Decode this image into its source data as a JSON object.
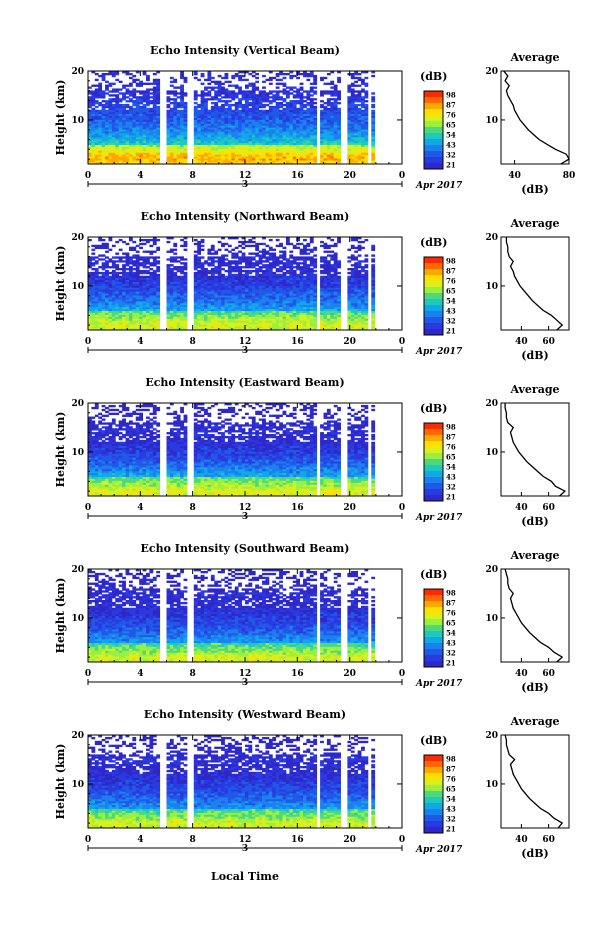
{
  "figure": {
    "x_axis_label": "Local Time",
    "date_label": "Apr 2017",
    "day_label": "3",
    "colorbar_unit": "(dB)",
    "colorbar_ticks": [
      "98",
      "87",
      "76",
      "65",
      "54",
      "43",
      "32",
      "21"
    ],
    "colorbar_colors": [
      "#ff2a00",
      "#ff6a00",
      "#ffa800",
      "#ffe000",
      "#d8f020",
      "#9af040",
      "#4cd880",
      "#1ec8c0",
      "#10a8e8",
      "#1c80f0",
      "#2058e8",
      "#2a3ae0",
      "#2e28c8"
    ],
    "profile_title": "Average",
    "profile_xlabel": "(dB)"
  },
  "chart_data": [
    {
      "type": "heatmap",
      "title": "Echo Intensity (Vertical Beam)",
      "xlabel": "",
      "ylabel": "Height (km)",
      "xlim": [
        0,
        24
      ],
      "ylim": [
        1,
        20
      ],
      "x_ticks": [
        "0",
        "4",
        "8",
        "12",
        "16",
        "20",
        "0"
      ],
      "y_ticks": [
        "10",
        "20"
      ],
      "color_range_db": [
        21,
        98
      ],
      "data_gaps_hours": [
        [
          5.5,
          5.9
        ],
        [
          7.6,
          8.0
        ],
        [
          17.5,
          17.8
        ],
        [
          19.3,
          19.7
        ],
        [
          21.4,
          21.6
        ]
      ],
      "profile": {
        "xlim": [
          30,
          80
        ],
        "x_ticks": [
          "40",
          "80"
        ],
        "y_ticks": [
          "10",
          "20"
        ],
        "height_km": [
          1,
          2,
          3,
          4,
          5,
          6,
          7,
          8,
          9,
          10,
          11,
          12,
          13,
          14,
          15,
          16,
          17,
          18,
          19,
          20
        ],
        "db": [
          74,
          80,
          78,
          70,
          64,
          58,
          54,
          50,
          47,
          44,
          42,
          40,
          39,
          37,
          35,
          34,
          36,
          33,
          35,
          32
        ]
      }
    },
    {
      "type": "heatmap",
      "title": "Echo Intensity (Northward Beam)",
      "xlabel": "",
      "ylabel": "Height (km)",
      "xlim": [
        0,
        24
      ],
      "ylim": [
        1,
        20
      ],
      "x_ticks": [
        "0",
        "4",
        "8",
        "12",
        "16",
        "20",
        "0"
      ],
      "y_ticks": [
        "10",
        "20"
      ],
      "color_range_db": [
        21,
        98
      ],
      "data_gaps_hours": [
        [
          5.5,
          5.9
        ],
        [
          7.6,
          8.0
        ],
        [
          17.5,
          17.8
        ],
        [
          19.3,
          19.7
        ],
        [
          21.4,
          21.6
        ]
      ],
      "profile": {
        "xlim": [
          25,
          75
        ],
        "x_ticks": [
          "40",
          "60"
        ],
        "y_ticks": [
          "10",
          "20"
        ],
        "height_km": [
          1,
          2,
          3,
          4,
          5,
          6,
          7,
          8,
          9,
          10,
          11,
          12,
          13,
          14,
          15,
          16,
          17,
          18,
          19,
          20
        ],
        "db": [
          66,
          70,
          66,
          62,
          56,
          52,
          48,
          45,
          42,
          39,
          37,
          35,
          34,
          32,
          34,
          31,
          30,
          30,
          29,
          29
        ]
      }
    },
    {
      "type": "heatmap",
      "title": "Echo Intensity (Eastward Beam)",
      "xlabel": "",
      "ylabel": "Height (km)",
      "xlim": [
        0,
        24
      ],
      "ylim": [
        1,
        20
      ],
      "x_ticks": [
        "0",
        "4",
        "8",
        "12",
        "16",
        "20",
        "0"
      ],
      "y_ticks": [
        "10",
        "20"
      ],
      "color_range_db": [
        21,
        98
      ],
      "data_gaps_hours": [
        [
          5.5,
          5.9
        ],
        [
          7.6,
          8.0
        ],
        [
          17.5,
          17.8
        ],
        [
          19.3,
          19.7
        ],
        [
          21.4,
          21.6
        ]
      ],
      "profile": {
        "xlim": [
          25,
          75
        ],
        "x_ticks": [
          "40",
          "60"
        ],
        "y_ticks": [
          "10",
          "20"
        ],
        "height_km": [
          1,
          2,
          3,
          4,
          5,
          6,
          7,
          8,
          9,
          10,
          11,
          12,
          13,
          14,
          15,
          16,
          17,
          18,
          19,
          20
        ],
        "db": [
          68,
          72,
          65,
          62,
          56,
          52,
          48,
          44,
          41,
          38,
          36,
          34,
          33,
          32,
          34,
          30,
          29,
          29,
          28,
          28
        ]
      }
    },
    {
      "type": "heatmap",
      "title": "Echo Intensity (Southward Beam)",
      "xlabel": "",
      "ylabel": "Height (km)",
      "xlim": [
        0,
        24
      ],
      "ylim": [
        1,
        20
      ],
      "x_ticks": [
        "0",
        "4",
        "8",
        "12",
        "16",
        "20",
        "0"
      ],
      "y_ticks": [
        "10",
        "20"
      ],
      "color_range_db": [
        21,
        98
      ],
      "data_gaps_hours": [
        [
          5.5,
          5.9
        ],
        [
          7.6,
          8.0
        ],
        [
          17.5,
          17.8
        ],
        [
          19.3,
          19.7
        ],
        [
          21.4,
          21.6
        ]
      ],
      "profile": {
        "xlim": [
          25,
          75
        ],
        "x_ticks": [
          "40",
          "60"
        ],
        "y_ticks": [
          "10",
          "20"
        ],
        "height_km": [
          1,
          2,
          3,
          4,
          5,
          6,
          7,
          8,
          9,
          10,
          11,
          12,
          13,
          14,
          15,
          16,
          17,
          18,
          19,
          20
        ],
        "db": [
          66,
          70,
          64,
          60,
          54,
          50,
          46,
          43,
          40,
          38,
          36,
          34,
          33,
          32,
          34,
          31,
          30,
          30,
          29,
          28
        ]
      }
    },
    {
      "type": "heatmap",
      "title": "Echo Intensity (Westward Beam)",
      "xlabel": "Local Time",
      "ylabel": "Height (km)",
      "xlim": [
        0,
        24
      ],
      "ylim": [
        1,
        20
      ],
      "x_ticks": [
        "0",
        "4",
        "8",
        "12",
        "16",
        "20",
        "0"
      ],
      "y_ticks": [
        "10",
        "20"
      ],
      "color_range_db": [
        21,
        98
      ],
      "data_gaps_hours": [
        [
          5.5,
          5.9
        ],
        [
          7.6,
          8.0
        ],
        [
          17.5,
          17.8
        ],
        [
          19.3,
          19.7
        ],
        [
          21.4,
          21.6
        ]
      ],
      "profile": {
        "xlim": [
          25,
          75
        ],
        "x_ticks": [
          "40",
          "60"
        ],
        "y_ticks": [
          "10",
          "20"
        ],
        "height_km": [
          1,
          2,
          3,
          4,
          5,
          6,
          7,
          8,
          9,
          10,
          11,
          12,
          13,
          14,
          15,
          16,
          17,
          18,
          19,
          20
        ],
        "db": [
          67,
          70,
          64,
          60,
          54,
          50,
          46,
          43,
          40,
          38,
          36,
          34,
          33,
          32,
          35,
          31,
          30,
          29,
          29,
          28
        ]
      }
    }
  ]
}
